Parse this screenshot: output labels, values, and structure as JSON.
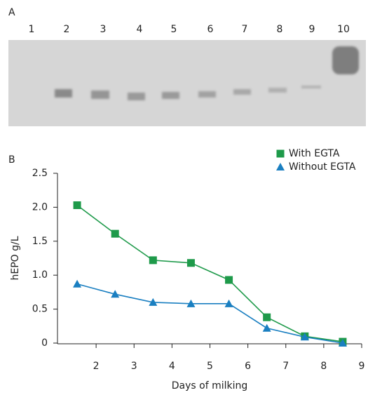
{
  "panel_a": {
    "label": "A",
    "lanes": [
      "1",
      "2",
      "3",
      "4",
      "5",
      "6",
      "7",
      "8",
      "9",
      "10"
    ]
  },
  "panel_b": {
    "label": "B"
  },
  "chart_data": {
    "type": "line",
    "x": [
      1.5,
      2.5,
      3.5,
      4.5,
      5.5,
      6.5,
      7.5,
      8.5
    ],
    "series": [
      {
        "name": "With EGTA",
        "color": "#1e9a4a",
        "marker": "square",
        "values": [
          2.03,
          1.61,
          1.22,
          1.18,
          0.93,
          0.38,
          0.1,
          0.02
        ]
      },
      {
        "name": "Without EGTA",
        "color": "#1a7fc1",
        "marker": "triangle",
        "values": [
          0.87,
          0.72,
          0.6,
          0.58,
          0.58,
          0.22,
          0.09,
          0.0
        ]
      }
    ],
    "xlabel": "Days of milking",
    "ylabel": "hEPO g/L",
    "xlim": [
      1,
      9
    ],
    "xticks": [
      2,
      3,
      4,
      5,
      6,
      7,
      8,
      9
    ],
    "ylim": [
      0,
      2.5
    ],
    "yticks": [
      0,
      0.5,
      {
        "value": 1,
        "label": "1.0"
      },
      1.5,
      {
        "value": 2,
        "label": "2.0"
      },
      2.5
    ],
    "legend": "top-right",
    "grid": false
  }
}
